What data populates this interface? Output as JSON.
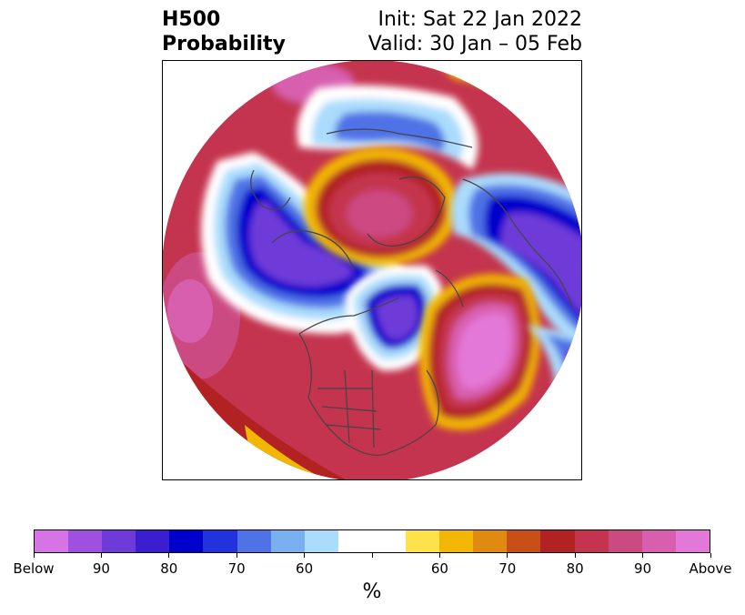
{
  "title": {
    "line1": "H500",
    "line2": "Probability",
    "init": "Init: Sat 22 Jan 2022",
    "valid": "Valid: 30 Jan – 05 Feb"
  },
  "colorbar": {
    "colors": [
      "#d674e6",
      "#a050e0",
      "#6e3ad8",
      "#3a1ed0",
      "#0000cc",
      "#2233dd",
      "#4f72e6",
      "#78b0f0",
      "#aadcfc",
      "#ffffff",
      "#ffffff",
      "#ffe14a",
      "#f2b705",
      "#e08a10",
      "#c85018",
      "#b22222",
      "#c4344e",
      "#cc4a82",
      "#d85eae",
      "#e478d8"
    ],
    "tick_labels": [
      "Below",
      "90",
      "80",
      "70",
      "60",
      "",
      "60",
      "70",
      "80",
      "90",
      "Above"
    ],
    "unit": "%"
  },
  "map": {
    "projection": "polar-stereographic",
    "colors": {
      "above_strong": "#e478d8",
      "above_mid": "#cc4a82",
      "above_low": "#b22222",
      "neutral_warm": "#f2b705",
      "neutral": "#ffffff",
      "below_low": "#aadcfc",
      "below_mid": "#4f72e6",
      "below_strong": "#0000cc",
      "below_max": "#6e3ad8",
      "coastline": "#444444"
    }
  }
}
